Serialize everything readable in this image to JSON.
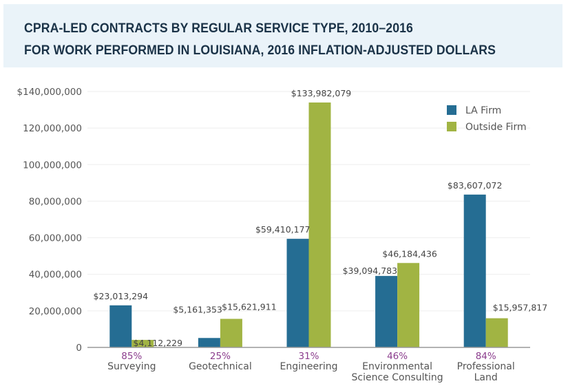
{
  "header": {
    "title_line1": "CPRA-LED CONTRACTS BY REGULAR SERVICE TYPE, 2010–2016",
    "title_line2": "FOR WORK PERFORMED IN LOUISIANA, 2016 INFLATION-ADJUSTED DOLLARS"
  },
  "chart_data": {
    "type": "bar",
    "title": "CPRA-LED CONTRACTS BY REGULAR SERVICE TYPE, 2010–2016 FOR WORK PERFORMED IN LOUISIANA, 2016 INFLATION-ADJUSTED DOLLARS",
    "xlabel": "",
    "ylabel": "",
    "ylim": [
      0,
      140000000
    ],
    "yticks": [
      0,
      20000000,
      40000000,
      60000000,
      80000000,
      100000000,
      120000000,
      140000000
    ],
    "ytick_labels": [
      "0",
      "20,000,000",
      "40,000,000",
      "60,000,000",
      "80,000,000",
      "100,000,000",
      "120,000,000",
      "$140,000,000"
    ],
    "grid": true,
    "legend_position": "top-right",
    "categories": [
      [
        "Surveying"
      ],
      [
        "Geotechnical"
      ],
      [
        "Engineering"
      ],
      [
        "Environmental",
        "Science Consulting"
      ],
      [
        "Professional",
        "Land"
      ]
    ],
    "category_percent_labels": [
      "85%",
      "25%",
      "31%",
      "46%",
      "84%"
    ],
    "series": [
      {
        "name": "LA Firm",
        "color": "#256d93",
        "values": [
          23013294,
          5161353,
          59410177,
          39094783,
          83607072
        ],
        "labels": [
          "$23,013,294",
          "$5,161,353",
          "$59,410,177",
          "$39,094,783",
          "$83,607,072"
        ]
      },
      {
        "name": "Outside Firm",
        "color": "#a1b443",
        "values": [
          4112229,
          15621911,
          133982079,
          46184436,
          15957817
        ],
        "labels": [
          "$4,112,229",
          "$15,621,911",
          "$133,982,079",
          "$46,184,436",
          "$15,957,817"
        ]
      }
    ]
  }
}
